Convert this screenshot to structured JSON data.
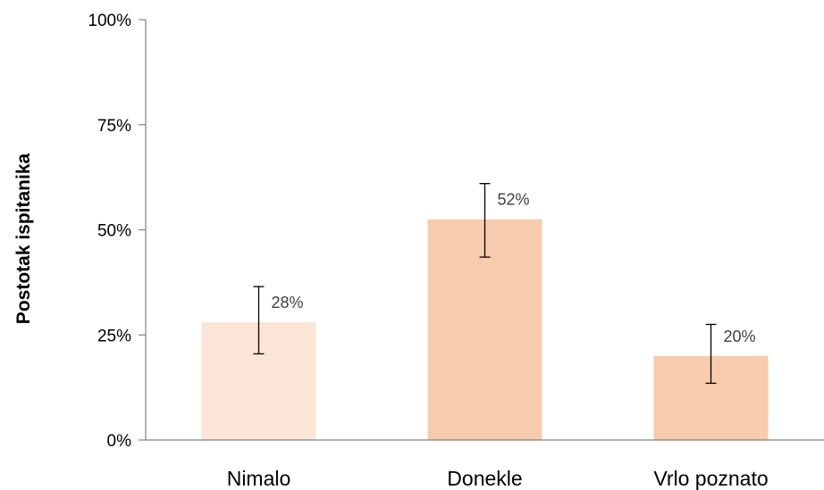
{
  "chart_data": {
    "type": "bar",
    "title": "",
    "xlabel": "",
    "ylabel": "Postotak ispitanika",
    "categories": [
      "Nimalo",
      "Donekle",
      "Vrlo poznato"
    ],
    "values": [
      28,
      52.5,
      20
    ],
    "data_labels": [
      "28%",
      "52%",
      "20%"
    ],
    "error_bars": [
      {
        "low": 20.5,
        "high": 36.5
      },
      {
        "low": 43.5,
        "high": 61
      },
      {
        "low": 13.5,
        "high": 27.5
      }
    ],
    "ylim": [
      0,
      100
    ],
    "yticks": [
      0,
      25,
      50,
      75,
      100
    ],
    "ytick_labels": [
      "0%",
      "25%",
      "50%",
      "75%",
      "100%"
    ],
    "grid": false,
    "legend": "none",
    "colors": {
      "bars": [
        "#fbe5d6",
        "#f8cbad",
        "#f8cbad"
      ],
      "axis": "#808080",
      "error_bar": "#000000",
      "data_label": "#404040"
    }
  }
}
